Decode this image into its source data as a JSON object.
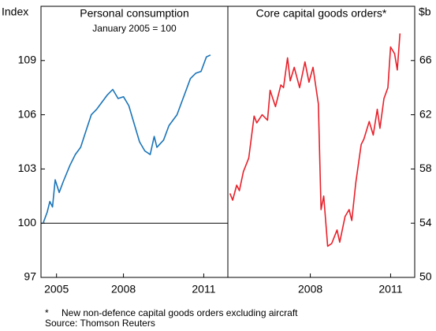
{
  "chart_data": [
    {
      "type": "line",
      "title": "Personal consumption",
      "subtitle": "January 2005 = 100",
      "y_label": "Index",
      "axis_side": "left",
      "x": [
        2005.0,
        2005.15,
        2005.25,
        2005.35,
        2005.45,
        2005.6,
        2005.75,
        2006.0,
        2006.2,
        2006.4,
        2006.6,
        2006.8,
        2007.0,
        2007.2,
        2007.4,
        2007.6,
        2007.8,
        2008.0,
        2008.2,
        2008.4,
        2008.6,
        2008.8,
        2009.0,
        2009.15,
        2009.25,
        2009.5,
        2009.7,
        2010.0,
        2010.3,
        2010.5,
        2010.7,
        2010.9,
        2011.1,
        2011.25
      ],
      "series": [
        {
          "color": "#1a74b8",
          "values": [
            100,
            100.6,
            101.2,
            100.9,
            102.4,
            101.7,
            102.3,
            103.2,
            103.8,
            104.2,
            105.1,
            106.0,
            106.3,
            106.7,
            107.1,
            107.4,
            106.9,
            107.0,
            106.5,
            105.5,
            104.5,
            104.0,
            103.8,
            104.8,
            104.2,
            104.6,
            105.4,
            106.0,
            107.2,
            108.0,
            108.3,
            108.4,
            109.2,
            109.3
          ]
        }
      ],
      "hline": 100,
      "xlim": [
        2004.92,
        2011.9
      ],
      "xticks": [
        {
          "value": 2005.5,
          "label": "2005"
        },
        {
          "value": 2008,
          "label": "2008"
        },
        {
          "value": 2011,
          "label": "2011"
        }
      ],
      "ylim": [
        97,
        112
      ],
      "yticks": [
        97,
        100,
        103,
        106,
        109
      ]
    },
    {
      "type": "line",
      "title": "Core capital goods orders*",
      "y_label": "$b",
      "axis_side": "right",
      "x": [
        2005.0,
        2005.1,
        2005.25,
        2005.35,
        2005.5,
        2005.7,
        2005.9,
        2006.0,
        2006.2,
        2006.4,
        2006.5,
        2006.7,
        2006.9,
        2007.0,
        2007.15,
        2007.25,
        2007.4,
        2007.6,
        2007.8,
        2007.95,
        2008.1,
        2008.3,
        2008.4,
        2008.5,
        2008.65,
        2008.8,
        2009.0,
        2009.1,
        2009.3,
        2009.45,
        2009.55,
        2009.7,
        2009.9,
        2010.0,
        2010.2,
        2010.35,
        2010.5,
        2010.6,
        2010.75,
        2010.9,
        2011.0,
        2011.15,
        2011.25,
        2011.35
      ],
      "series": [
        {
          "color": "#e8202a",
          "values": [
            56.2,
            55.7,
            56.8,
            56.4,
            57.8,
            58.8,
            61.9,
            61.4,
            62.0,
            61.6,
            63.8,
            62.6,
            64.2,
            64.0,
            66.2,
            64.5,
            65.5,
            64.0,
            65.9,
            64.4,
            65.5,
            62.8,
            55.0,
            56.0,
            52.3,
            52.5,
            53.5,
            52.6,
            54.5,
            55.0,
            54.2,
            57.0,
            59.8,
            60.2,
            61.5,
            60.5,
            62.4,
            61.0,
            63.2,
            64.0,
            67.0,
            66.5,
            65.3,
            68.0
          ]
        }
      ],
      "xlim": [
        2004.92,
        2011.9
      ],
      "xticks": [
        {
          "value": 2008,
          "label": "2008"
        },
        {
          "value": 2011,
          "label": "2011"
        }
      ],
      "ylim": [
        50,
        70
      ],
      "yticks": [
        50,
        54,
        58,
        62,
        66
      ]
    }
  ],
  "notes": {
    "marker": "*",
    "text": "New non-defence capital goods orders excluding aircraft",
    "source": "Source: Thomson Reuters"
  }
}
